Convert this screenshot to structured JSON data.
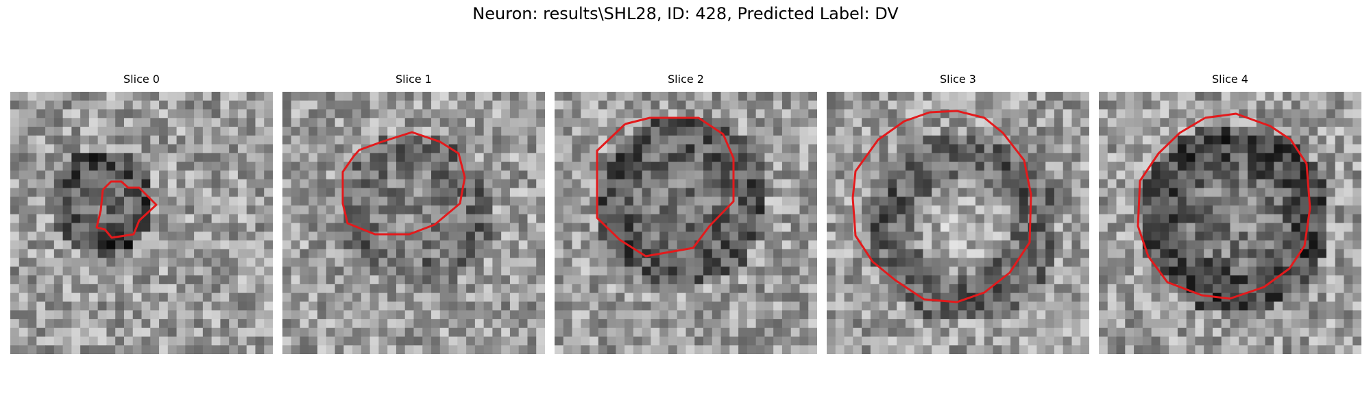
{
  "figure": {
    "title": "Neuron: results\\SHL28, ID: 428, Predicted Label: DV"
  },
  "slices": [
    {
      "title": "Slice 0",
      "contour_color": "#e31a1c"
    },
    {
      "title": "Slice 1",
      "contour_color": "#e31a1c"
    },
    {
      "title": "Slice 2",
      "contour_color": "#e31a1c"
    },
    {
      "title": "Slice 3",
      "contour_color": "#e31a1c"
    },
    {
      "title": "Slice 4",
      "contour_color": "#e31a1c"
    }
  ]
}
